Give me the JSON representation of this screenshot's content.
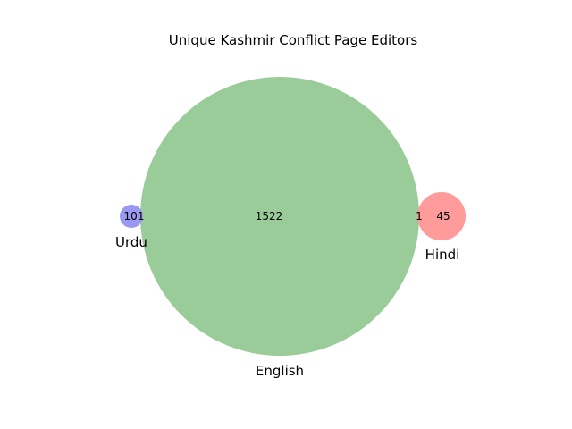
{
  "title": "Unique Kashmir Conflict Page Editors",
  "sets": [
    {
      "key": "english",
      "label": "English",
      "color": "#99cc99"
    },
    {
      "key": "urdu",
      "label": "Urdu",
      "color": "#9999f2"
    },
    {
      "key": "hindi",
      "label": "Hindi",
      "color": "#ff9999"
    }
  ],
  "regions": {
    "urdu_only": "101",
    "english_only": "1522",
    "english_hindi": "1",
    "hindi_only": "45"
  }
}
